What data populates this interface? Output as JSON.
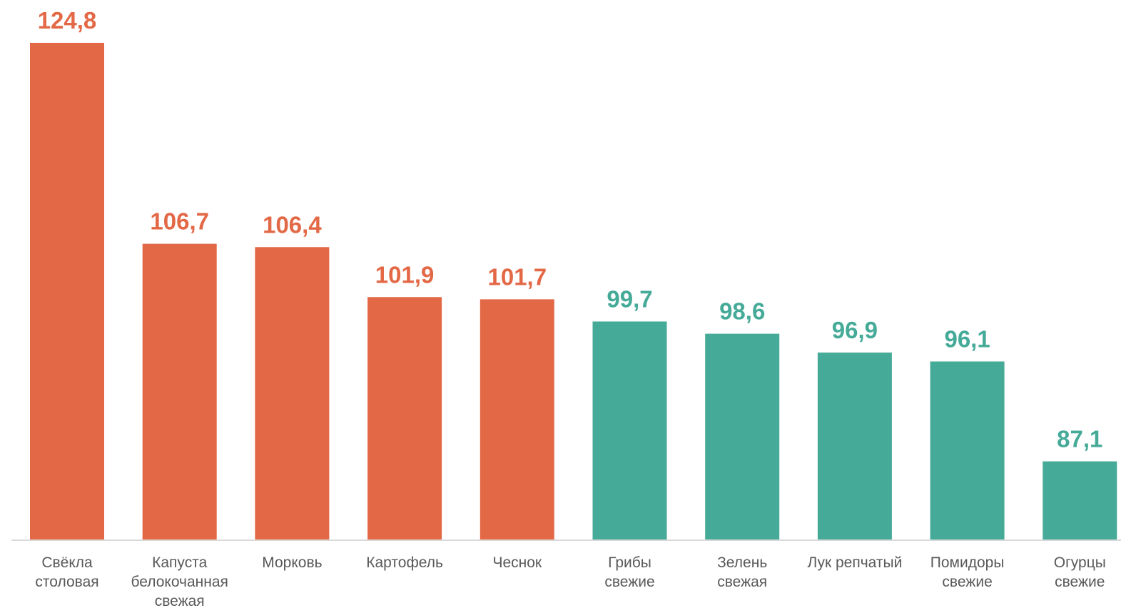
{
  "chart_data": {
    "type": "bar",
    "title": "",
    "xlabel": "",
    "ylabel": "",
    "categories": [
      [
        "Свёкла",
        "столовая"
      ],
      [
        "Капуста",
        "белокочанная",
        "свежая"
      ],
      [
        "Морковь"
      ],
      [
        "Картофель"
      ],
      [
        "Чеснок"
      ],
      [
        "Грибы",
        "свежие"
      ],
      [
        "Зелень",
        "свежая"
      ],
      [
        "Лук репчатый"
      ],
      [
        "Помидоры",
        "свежие"
      ],
      [
        "Огурцы",
        "свежие"
      ]
    ],
    "values": [
      124.8,
      106.7,
      106.4,
      101.9,
      101.7,
      99.7,
      98.6,
      96.9,
      96.1,
      87.1
    ],
    "value_labels": [
      "124,8",
      "106,7",
      "106,4",
      "101,9",
      "101,7",
      "99,7",
      "98,6",
      "96,9",
      "96,1",
      "87,1"
    ],
    "colors": {
      "above_100": "#E36846",
      "below_100": "#45AA98",
      "axis": "#D9D9D9"
    },
    "color_threshold": 100,
    "ylim": [
      80,
      125
    ],
    "grid": false,
    "legend": "none"
  }
}
